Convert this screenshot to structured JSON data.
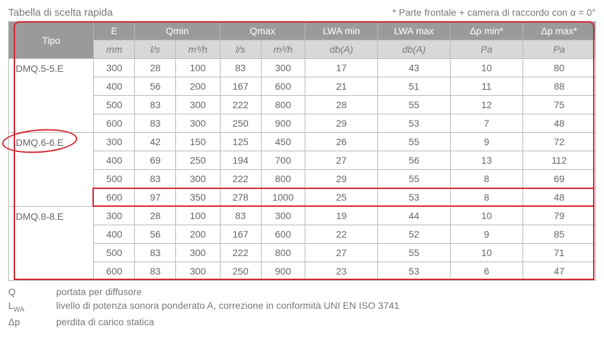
{
  "header": {
    "title": "Tabella di scelta rapida",
    "note": "* Parte frontale + camera di raccordo con α = 0°"
  },
  "columns": {
    "tipo": "Tipo",
    "e": "E",
    "e_unit": "mm",
    "qmin": "Qmin",
    "qmin_u1": "l/s",
    "qmin_u2": "m³/h",
    "qmax": "Qmax",
    "qmax_u1": "l/s",
    "qmax_u2": "m³/h",
    "lwamin": "LWA min",
    "lwamin_u": "db(A)",
    "lwamax": "LWA max",
    "lwamax_u": "db(A)",
    "dpmin": "Δp min*",
    "dpmin_u": "Pa",
    "dpmax": "Δp max*",
    "dpmax_u": "Pa"
  },
  "groups": [
    {
      "tipo": "DMQ.5-5.E",
      "rows": [
        {
          "e": "300",
          "qmin_ls": "28",
          "qmin_mh": "100",
          "qmax_ls": "83",
          "qmax_mh": "300",
          "lwamin": "17",
          "lwamax": "43",
          "dpmin": "10",
          "dpmax": "80"
        },
        {
          "e": "400",
          "qmin_ls": "56",
          "qmin_mh": "200",
          "qmax_ls": "167",
          "qmax_mh": "600",
          "lwamin": "21",
          "lwamax": "51",
          "dpmin": "11",
          "dpmax": "88"
        },
        {
          "e": "500",
          "qmin_ls": "83",
          "qmin_mh": "300",
          "qmax_ls": "222",
          "qmax_mh": "800",
          "lwamin": "28",
          "lwamax": "55",
          "dpmin": "12",
          "dpmax": "75"
        },
        {
          "e": "600",
          "qmin_ls": "83",
          "qmin_mh": "300",
          "qmax_ls": "250",
          "qmax_mh": "900",
          "lwamin": "29",
          "lwamax": "53",
          "dpmin": "7",
          "dpmax": "48"
        }
      ]
    },
    {
      "tipo": "DMQ.6-6.E",
      "circled": true,
      "rows": [
        {
          "e": "300",
          "qmin_ls": "42",
          "qmin_mh": "150",
          "qmax_ls": "125",
          "qmax_mh": "450",
          "lwamin": "26",
          "lwamax": "55",
          "dpmin": "9",
          "dpmax": "72"
        },
        {
          "e": "400",
          "qmin_ls": "69",
          "qmin_mh": "250",
          "qmax_ls": "194",
          "qmax_mh": "700",
          "lwamin": "27",
          "lwamax": "56",
          "dpmin": "13",
          "dpmax": "112"
        },
        {
          "e": "500",
          "qmin_ls": "83",
          "qmin_mh": "300",
          "qmax_ls": "222",
          "qmax_mh": "800",
          "lwamin": "29",
          "lwamax": "55",
          "dpmin": "8",
          "dpmax": "69"
        },
        {
          "e": "600",
          "qmin_ls": "97",
          "qmin_mh": "350",
          "qmax_ls": "278",
          "qmax_mh": "1000",
          "lwamin": "25",
          "lwamax": "53",
          "dpmin": "8",
          "dpmax": "48",
          "highlight": true
        }
      ]
    },
    {
      "tipo": "DMQ.8-8.E",
      "rows": [
        {
          "e": "300",
          "qmin_ls": "28",
          "qmin_mh": "100",
          "qmax_ls": "83",
          "qmax_mh": "300",
          "lwamin": "19",
          "lwamax": "44",
          "dpmin": "10",
          "dpmax": "79"
        },
        {
          "e": "400",
          "qmin_ls": "56",
          "qmin_mh": "200",
          "qmax_ls": "167",
          "qmax_mh": "600",
          "lwamin": "22",
          "lwamax": "52",
          "dpmin": "9",
          "dpmax": "85"
        },
        {
          "e": "500",
          "qmin_ls": "83",
          "qmin_mh": "300",
          "qmax_ls": "222",
          "qmax_mh": "800",
          "lwamin": "27",
          "lwamax": "55",
          "dpmin": "10",
          "dpmax": "71"
        },
        {
          "e": "600",
          "qmin_ls": "83",
          "qmin_mh": "300",
          "qmax_ls": "250",
          "qmax_mh": "900",
          "lwamin": "23",
          "lwamax": "53",
          "dpmin": "6",
          "dpmax": "47"
        }
      ]
    }
  ],
  "legend": [
    {
      "sym": "Q",
      "text": "portata per diffusore"
    },
    {
      "sym": "L<sub>WA</sub>",
      "text": "livello di potenza sonora ponderato A, correzione in conformità UNI EN ISO 3741"
    },
    {
      "sym": "Δp",
      "text": "perdita di carico statica"
    }
  ],
  "col_widths_pct": [
    13.5,
    6.5,
    6.5,
    7,
    6.5,
    7,
    11.5,
    11.5,
    11.5,
    11.5,
    7
  ],
  "highlight_color": "#d3242b"
}
